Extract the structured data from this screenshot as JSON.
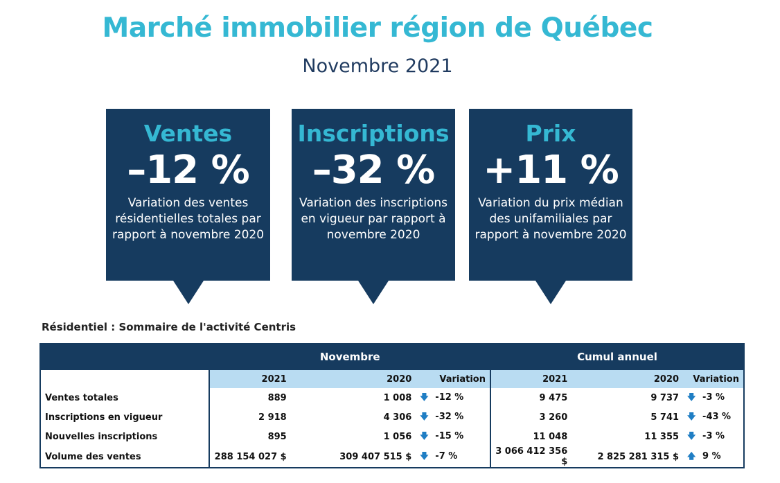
{
  "header": {
    "title": "Marché immobilier région de Québec",
    "subtitle": "Novembre 2021"
  },
  "cards": [
    {
      "title": "Ventes",
      "value": "–12 %",
      "desc": "Variation des ventes résidentielles totales par rapport à novembre 2020"
    },
    {
      "title": "Inscriptions",
      "value": "–32 %",
      "desc": "Variation des inscriptions en vigueur par rapport à novembre 2020"
    },
    {
      "title": "Prix",
      "value": "+11 %",
      "desc": "Variation du prix médian des unifamiliales par rapport à novembre 2020"
    }
  ],
  "table": {
    "caption": "Résidentiel : Sommaire de l'activité Centris",
    "groups": {
      "month": "Novembre",
      "ytd": "Cumul annuel"
    },
    "cols": {
      "y2021": "2021",
      "y2020": "2020",
      "variation": "Variation"
    },
    "rows": [
      {
        "label": "Ventes totales",
        "m2021": "889",
        "m2020": "1 008",
        "mdir": "down",
        "mvar": "-12 %",
        "y2021": "9 475",
        "y2020": "9 737",
        "ydir": "down",
        "yvar": "-3 %"
      },
      {
        "label": "Inscriptions en vigueur",
        "m2021": "2 918",
        "m2020": "4 306",
        "mdir": "down",
        "mvar": "-32 %",
        "y2021": "3 260",
        "y2020": "5 741",
        "ydir": "down",
        "yvar": "-43 %"
      },
      {
        "label": "Nouvelles inscriptions",
        "m2021": "895",
        "m2020": "1 056",
        "mdir": "down",
        "mvar": "-15 %",
        "y2021": "11 048",
        "y2020": "11 355",
        "ydir": "down",
        "yvar": "-3 %"
      },
      {
        "label": "Volume des ventes",
        "m2021": "288 154 027  $",
        "m2020": "309 407 515  $",
        "mdir": "down",
        "mvar": "-7 %",
        "y2021": "3 066 412 356  $",
        "y2020": "2 825 281 315  $",
        "ydir": "up",
        "yvar": "9 %"
      }
    ]
  },
  "colors": {
    "brand_dark": "#163b5f",
    "brand_light": "#35b8d3",
    "header_light": "#b9dcf2",
    "arrow": "#1f7ec4"
  }
}
